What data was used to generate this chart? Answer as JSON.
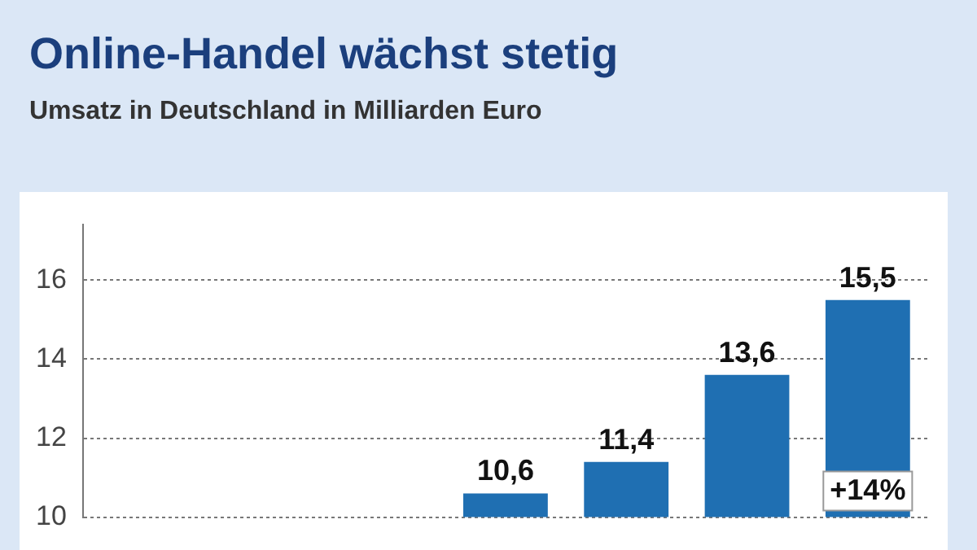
{
  "chart_data": {
    "type": "bar",
    "title": "Online-Handel wächst stetig",
    "subtitle": "Umsatz in Deutschland in Milliarden Euro",
    "categories": [
      null,
      null,
      null,
      null,
      null,
      null,
      null
    ],
    "values": [
      null,
      null,
      null,
      10.6,
      11.4,
      13.6,
      15.5
    ],
    "color": "#1f6fb2",
    "value_labels": [
      null,
      null,
      null,
      "10,6",
      "11,4",
      "13,6",
      "15,5"
    ],
    "annotations": [
      "+14%"
    ],
    "ylim": [
      10,
      17.4
    ],
    "yticks": [
      10,
      12,
      14,
      16
    ],
    "grid": "y"
  }
}
